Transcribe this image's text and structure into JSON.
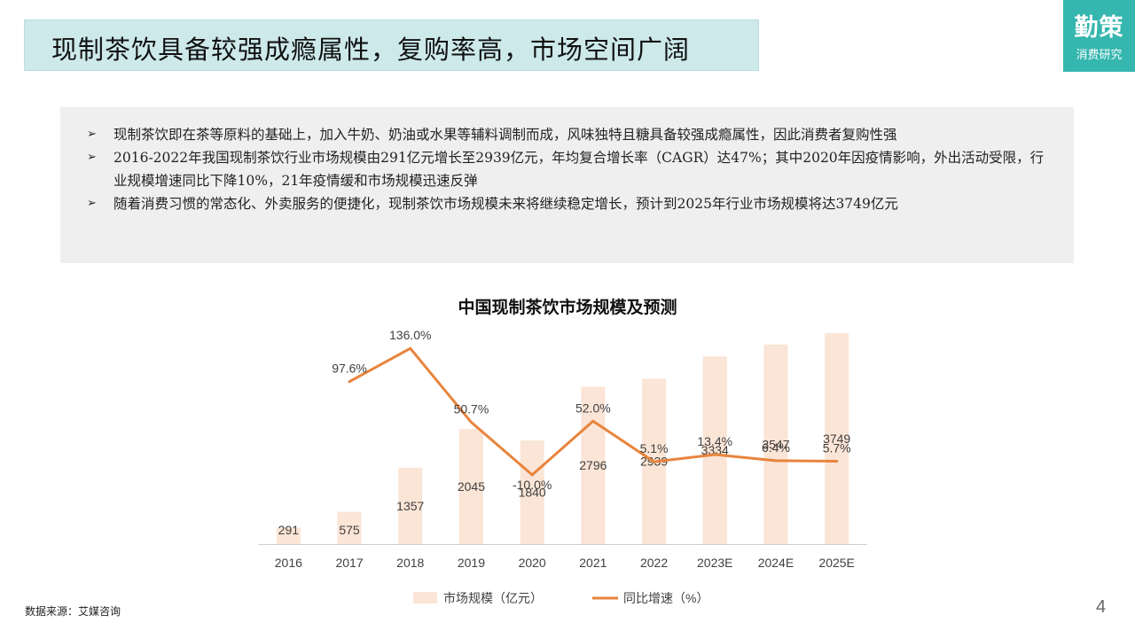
{
  "header": {
    "title": "现制茶饮具备较强成瘾属性，复购率高，市场空间广阔",
    "logo_main": "勤策",
    "logo_sub": "消费研究"
  },
  "bullets": [
    "现制茶饮即在茶等原料的基础上，加入牛奶、奶油或水果等辅料调制而成，风味独特且糖具备较强成瘾属性，因此消费者复购性强",
    "2016-2022年我国现制茶饮行业市场规模由291亿元增长至2939亿元，年均复合增长率（CAGR）达47%；其中2020年因疫情影响，外出活动受限，行业规模增速同比下降10%，21年疫情缓和市场规模迅速反弹",
    "随着消费习惯的常态化、外卖服务的便捷化，现制茶饮市场规模未来将继续稳定增长，预计到2025年行业市场规模将达3749亿元"
  ],
  "chart_data": {
    "type": "bar",
    "title": "中国现制茶饮市场规模及预测",
    "categories": [
      "2016",
      "2017",
      "2018",
      "2019",
      "2020",
      "2021",
      "2022",
      "2023E",
      "2024E",
      "2025E"
    ],
    "series": [
      {
        "name": "市场规模（亿元）",
        "type": "bar",
        "values": [
          291,
          575,
          1357,
          2045,
          1840,
          2796,
          2939,
          3334,
          3547,
          3749
        ],
        "color": "#fbe5d6"
      },
      {
        "name": "同比增速（%）",
        "type": "line",
        "values": [
          null,
          97.6,
          136.0,
          50.7,
          -10.0,
          52.0,
          5.1,
          13.4,
          6.4,
          5.7
        ],
        "labels": [
          "",
          "97.6%",
          "136.0%",
          "50.7%",
          "-10.0%",
          "52.0%",
          "5.1%",
          "13.4%",
          "6.4%",
          "5.7%"
        ],
        "color": "#e8843c"
      }
    ],
    "bar_ylim": [
      0,
      4000
    ],
    "line_ylim": [
      -90,
      170
    ],
    "grid": false,
    "legend_position": "bottom"
  },
  "footer": {
    "source": "数据来源：艾媒咨询",
    "page_number": "4"
  }
}
